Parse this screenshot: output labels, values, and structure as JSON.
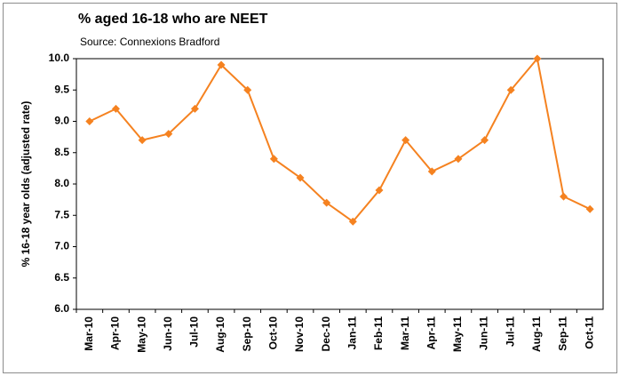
{
  "chart_data": {
    "type": "line",
    "title": "% aged 16-18 who are NEET",
    "subtitle": "Source: Connexions Bradford",
    "y_label": "% 16-18 year olds (adjusted rate)",
    "categories": [
      "Mar-10",
      "Apr-10",
      "May-10",
      "Jun-10",
      "Jul-10",
      "Aug-10",
      "Sep-10",
      "Oct-10",
      "Nov-10",
      "Dec-10",
      "Jan-11",
      "Feb-11",
      "Mar-11",
      "Apr-11",
      "May-11",
      "Jun-11",
      "Jul-11",
      "Aug-11",
      "Sep-11",
      "Oct-11"
    ],
    "values": [
      9.0,
      9.2,
      8.7,
      8.8,
      9.2,
      9.9,
      9.5,
      8.4,
      8.1,
      7.7,
      7.4,
      7.9,
      8.7,
      8.2,
      8.4,
      8.7,
      9.5,
      10.0,
      7.8,
      7.6
    ],
    "color": "#f58220",
    "ylim": [
      6,
      10
    ],
    "yticks": [
      {
        "value": 6,
        "label": "6.0"
      },
      6.5,
      {
        "value": 7,
        "label": "7.0"
      },
      7.5,
      {
        "value": 8,
        "label": "8.0"
      },
      8.5,
      {
        "value": 9,
        "label": "9.0"
      },
      9.5,
      {
        "value": 10,
        "label": "10.0"
      }
    ],
    "grid": false
  }
}
